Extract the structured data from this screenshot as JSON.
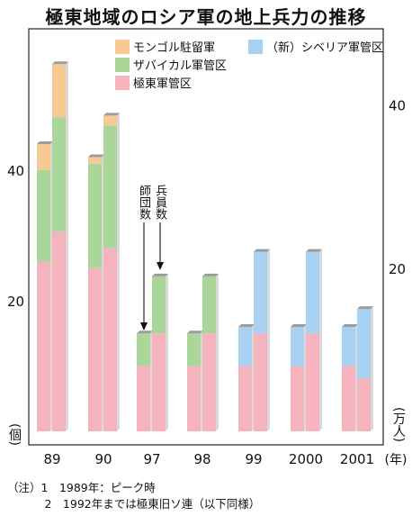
{
  "title": "極東地域のロシア軍の地上兵力の推移",
  "chart_data": {
    "type": "bar",
    "stacked": true,
    "categories": [
      "89",
      "90",
      "97",
      "98",
      "99",
      "2000",
      "2001"
    ],
    "x_unit": "(年)",
    "left_axis": {
      "label": "(個)",
      "ticks": [
        20,
        40
      ],
      "range": [
        0,
        54
      ]
    },
    "right_axis": {
      "label": "(万人)",
      "ticks": [
        20,
        40
      ],
      "range": [
        0,
        43.2
      ]
    },
    "bar_labels": {
      "divisions": "師団数",
      "personnel": "兵員数"
    },
    "colors": {
      "mongolia": "#f7c993",
      "transbaikal": "#aad69a",
      "fareast": "#f5b3bd",
      "siberia": "#a9d2f2",
      "cap": "#9c9c9c",
      "side": "#cfcfcf"
    },
    "series": [
      {
        "name": "モンゴル駐留軍",
        "key": "mongolia",
        "divisions": [
          4,
          1,
          0,
          0,
          0,
          0,
          0
        ],
        "personnel": [
          6.5,
          1.2,
          0,
          0,
          0,
          0,
          0
        ]
      },
      {
        "name": "ザバイカル軍管区",
        "key": "transbaikal",
        "divisions": [
          14,
          16,
          5,
          5,
          0,
          0,
          0
        ],
        "personnel": [
          14,
          15,
          7,
          7,
          0,
          0,
          0
        ]
      },
      {
        "name": "極東軍管区",
        "key": "fareast",
        "divisions": [
          26,
          25,
          10,
          10,
          10,
          10,
          10
        ],
        "personnel": [
          24.5,
          22.5,
          12,
          12,
          12,
          12,
          6.5
        ]
      },
      {
        "name": "（新）シベリア軍管区",
        "key": "siberia",
        "divisions": [
          0,
          0,
          0,
          0,
          6,
          6,
          6
        ],
        "personnel": [
          0,
          0,
          0,
          0,
          10,
          10,
          8.5
        ]
      }
    ]
  },
  "notes": [
    "（注）1　1989年：ピーク時",
    "　　　 2　1992年までは極東旧ソ連（以下同様）"
  ]
}
